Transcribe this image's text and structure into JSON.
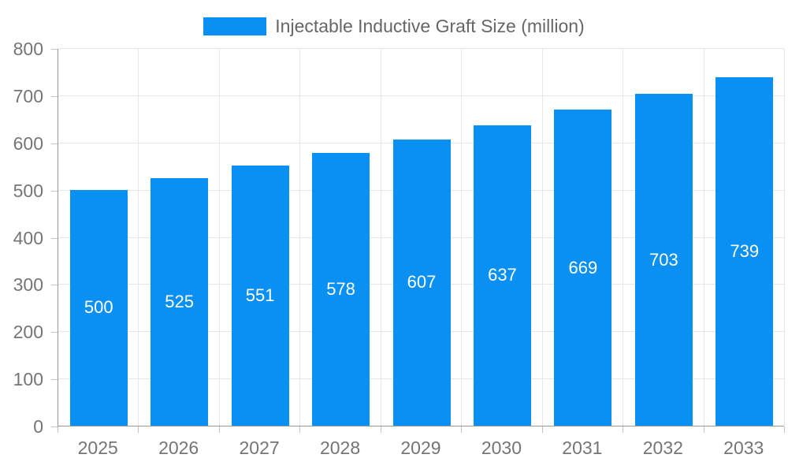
{
  "chart_data": {
    "type": "bar",
    "title": "Injectable Inductive Graft Size (million)",
    "categories": [
      "2025",
      "2026",
      "2027",
      "2028",
      "2029",
      "2030",
      "2031",
      "2032",
      "2033"
    ],
    "values": [
      500,
      525,
      551,
      578,
      607,
      637,
      669,
      703,
      739
    ],
    "series": [
      {
        "name": "Injectable Inductive Graft Size (million)",
        "values": [
          500,
          525,
          551,
          578,
          607,
          637,
          669,
          703,
          739
        ]
      }
    ],
    "xlabel": "",
    "ylabel": "",
    "ylim": [
      0,
      800
    ],
    "yticks": [
      0,
      100,
      200,
      300,
      400,
      500,
      600,
      700,
      800
    ],
    "grid": true,
    "legend_position": "top",
    "bar_color": "#0990f2",
    "value_label_color": "#ffffff",
    "axis_line_color": "#999999",
    "gridline_color": "#e6e6e6",
    "tick_label_color": "#757575"
  },
  "legend": {
    "label": "Injectable Inductive Graft Size (million)",
    "swatch_color": "#0990f2"
  }
}
